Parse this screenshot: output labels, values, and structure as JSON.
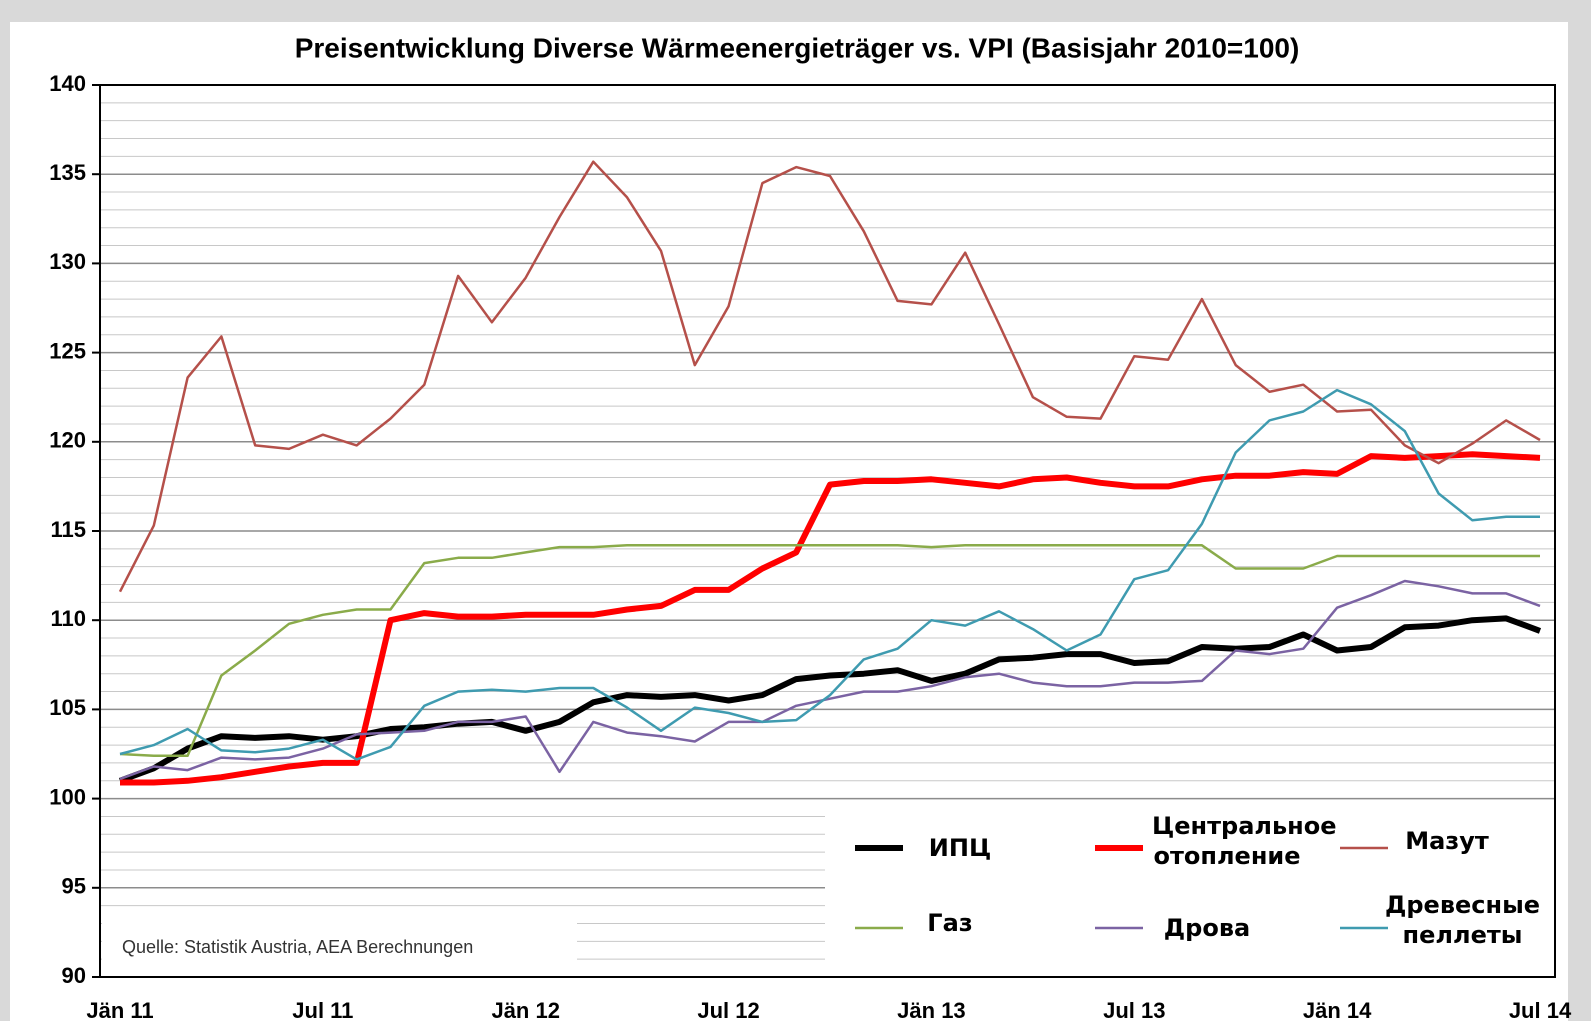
{
  "chart_data": {
    "type": "line",
    "title": "Preisentwicklung Diverse Wärmeenergieträger vs. VPI (Basisjahr 2010=100)",
    "annotation": "Quelle: Statistik Austria, AEA Berechnungen",
    "categories": [
      "Jän 11",
      null,
      null,
      null,
      null,
      null,
      "Jul 11",
      null,
      null,
      null,
      null,
      null,
      "Jän 12",
      null,
      null,
      null,
      null,
      null,
      "Jul 12",
      null,
      null,
      null,
      null,
      null,
      "Jän 13",
      null,
      null,
      null,
      null,
      null,
      "Jul 13",
      null,
      null,
      null,
      null,
      null,
      "Jän 14",
      null,
      null,
      null,
      null,
      null,
      "Jul 14"
    ],
    "ylim": [
      90,
      140
    ],
    "yticks": [
      90,
      95,
      100,
      105,
      110,
      115,
      120,
      125,
      130,
      135,
      140
    ],
    "grid": true,
    "minor_grid": true,
    "legend": "lower right",
    "series": [
      {
        "name": "ИПЦ",
        "color": "#000000",
        "line_width": 6,
        "values": [
          101.0,
          101.7,
          102.8,
          103.5,
          103.4,
          103.5,
          103.3,
          103.5,
          103.9,
          104.0,
          104.2,
          104.3,
          103.8,
          104.3,
          105.4,
          105.8,
          105.7,
          105.8,
          105.5,
          105.8,
          106.7,
          106.9,
          107.0,
          107.2,
          106.6,
          107.0,
          107.8,
          107.9,
          108.1,
          108.1,
          107.6,
          107.7,
          108.5,
          108.4,
          108.5,
          109.2,
          108.3,
          108.5,
          109.6,
          109.7,
          110.0,
          110.1,
          109.4
        ]
      },
      {
        "name": "Центральное отопление",
        "color": "#ff0000",
        "line_width": 6,
        "values": [
          100.9,
          100.9,
          101.0,
          101.2,
          101.5,
          101.8,
          102.0,
          102.0,
          110.0,
          110.4,
          110.2,
          110.2,
          110.3,
          110.3,
          110.3,
          110.6,
          110.8,
          111.7,
          111.7,
          112.9,
          113.8,
          117.6,
          117.8,
          117.8,
          117.9,
          117.7,
          117.5,
          117.9,
          118.0,
          117.7,
          117.5,
          117.5,
          117.9,
          118.1,
          118.1,
          118.3,
          118.2,
          119.2,
          119.1,
          119.2,
          119.3,
          119.2,
          119.1
        ]
      },
      {
        "name": "Мазут",
        "color": "#b5504a",
        "line_width": 2.5,
        "values": [
          111.6,
          115.3,
          123.6,
          125.9,
          119.8,
          119.6,
          120.4,
          119.8,
          121.3,
          123.2,
          129.3,
          126.7,
          129.2,
          132.6,
          135.7,
          133.7,
          130.7,
          124.3,
          127.6,
          134.5,
          135.4,
          134.9,
          131.8,
          127.9,
          127.7,
          130.6,
          126.6,
          122.5,
          121.4,
          121.3,
          124.8,
          124.6,
          128.0,
          124.3,
          122.8,
          123.2,
          121.7,
          121.8,
          119.8,
          118.8,
          119.9,
          121.2,
          120.1
        ]
      },
      {
        "name": "Газ",
        "color": "#8aab4a",
        "line_width": 2.5,
        "values": [
          102.5,
          102.4,
          102.4,
          106.9,
          108.3,
          109.8,
          110.3,
          110.6,
          110.6,
          113.2,
          113.5,
          113.5,
          113.8,
          114.1,
          114.1,
          114.2,
          114.2,
          114.2,
          114.2,
          114.2,
          114.2,
          114.2,
          114.2,
          114.2,
          114.1,
          114.2,
          114.2,
          114.2,
          114.2,
          114.2,
          114.2,
          114.2,
          114.2,
          112.9,
          112.9,
          112.9,
          113.6,
          113.6,
          113.6,
          113.6,
          113.6,
          113.6,
          113.6
        ]
      },
      {
        "name": "Дрова",
        "color": "#7b63a3",
        "line_width": 2.5,
        "values": [
          101.1,
          101.8,
          101.6,
          102.3,
          102.2,
          102.3,
          102.8,
          103.6,
          103.7,
          103.8,
          104.3,
          104.3,
          104.6,
          101.5,
          104.3,
          103.7,
          103.5,
          103.2,
          104.3,
          104.3,
          105.2,
          105.6,
          106.0,
          106.0,
          106.3,
          106.8,
          107.0,
          106.5,
          106.3,
          106.3,
          106.5,
          106.5,
          106.6,
          108.3,
          108.1,
          108.4,
          110.7,
          111.4,
          112.2,
          111.9,
          111.5,
          111.5,
          110.8
        ]
      },
      {
        "name": "Древесные пеллеты",
        "color": "#3f9bb0",
        "line_width": 2.5,
        "values": [
          102.5,
          103.0,
          103.9,
          102.7,
          102.6,
          102.8,
          103.3,
          102.2,
          102.9,
          105.2,
          106.0,
          106.1,
          106.0,
          106.2,
          106.2,
          105.1,
          103.8,
          105.1,
          104.8,
          104.3,
          104.4,
          105.8,
          107.8,
          108.4,
          110.0,
          109.7,
          110.5,
          109.5,
          108.3,
          109.2,
          112.3,
          112.8,
          115.4,
          119.4,
          121.2,
          121.7,
          122.9,
          122.1,
          120.6,
          117.1,
          115.6,
          115.8,
          115.8
        ]
      }
    ]
  }
}
